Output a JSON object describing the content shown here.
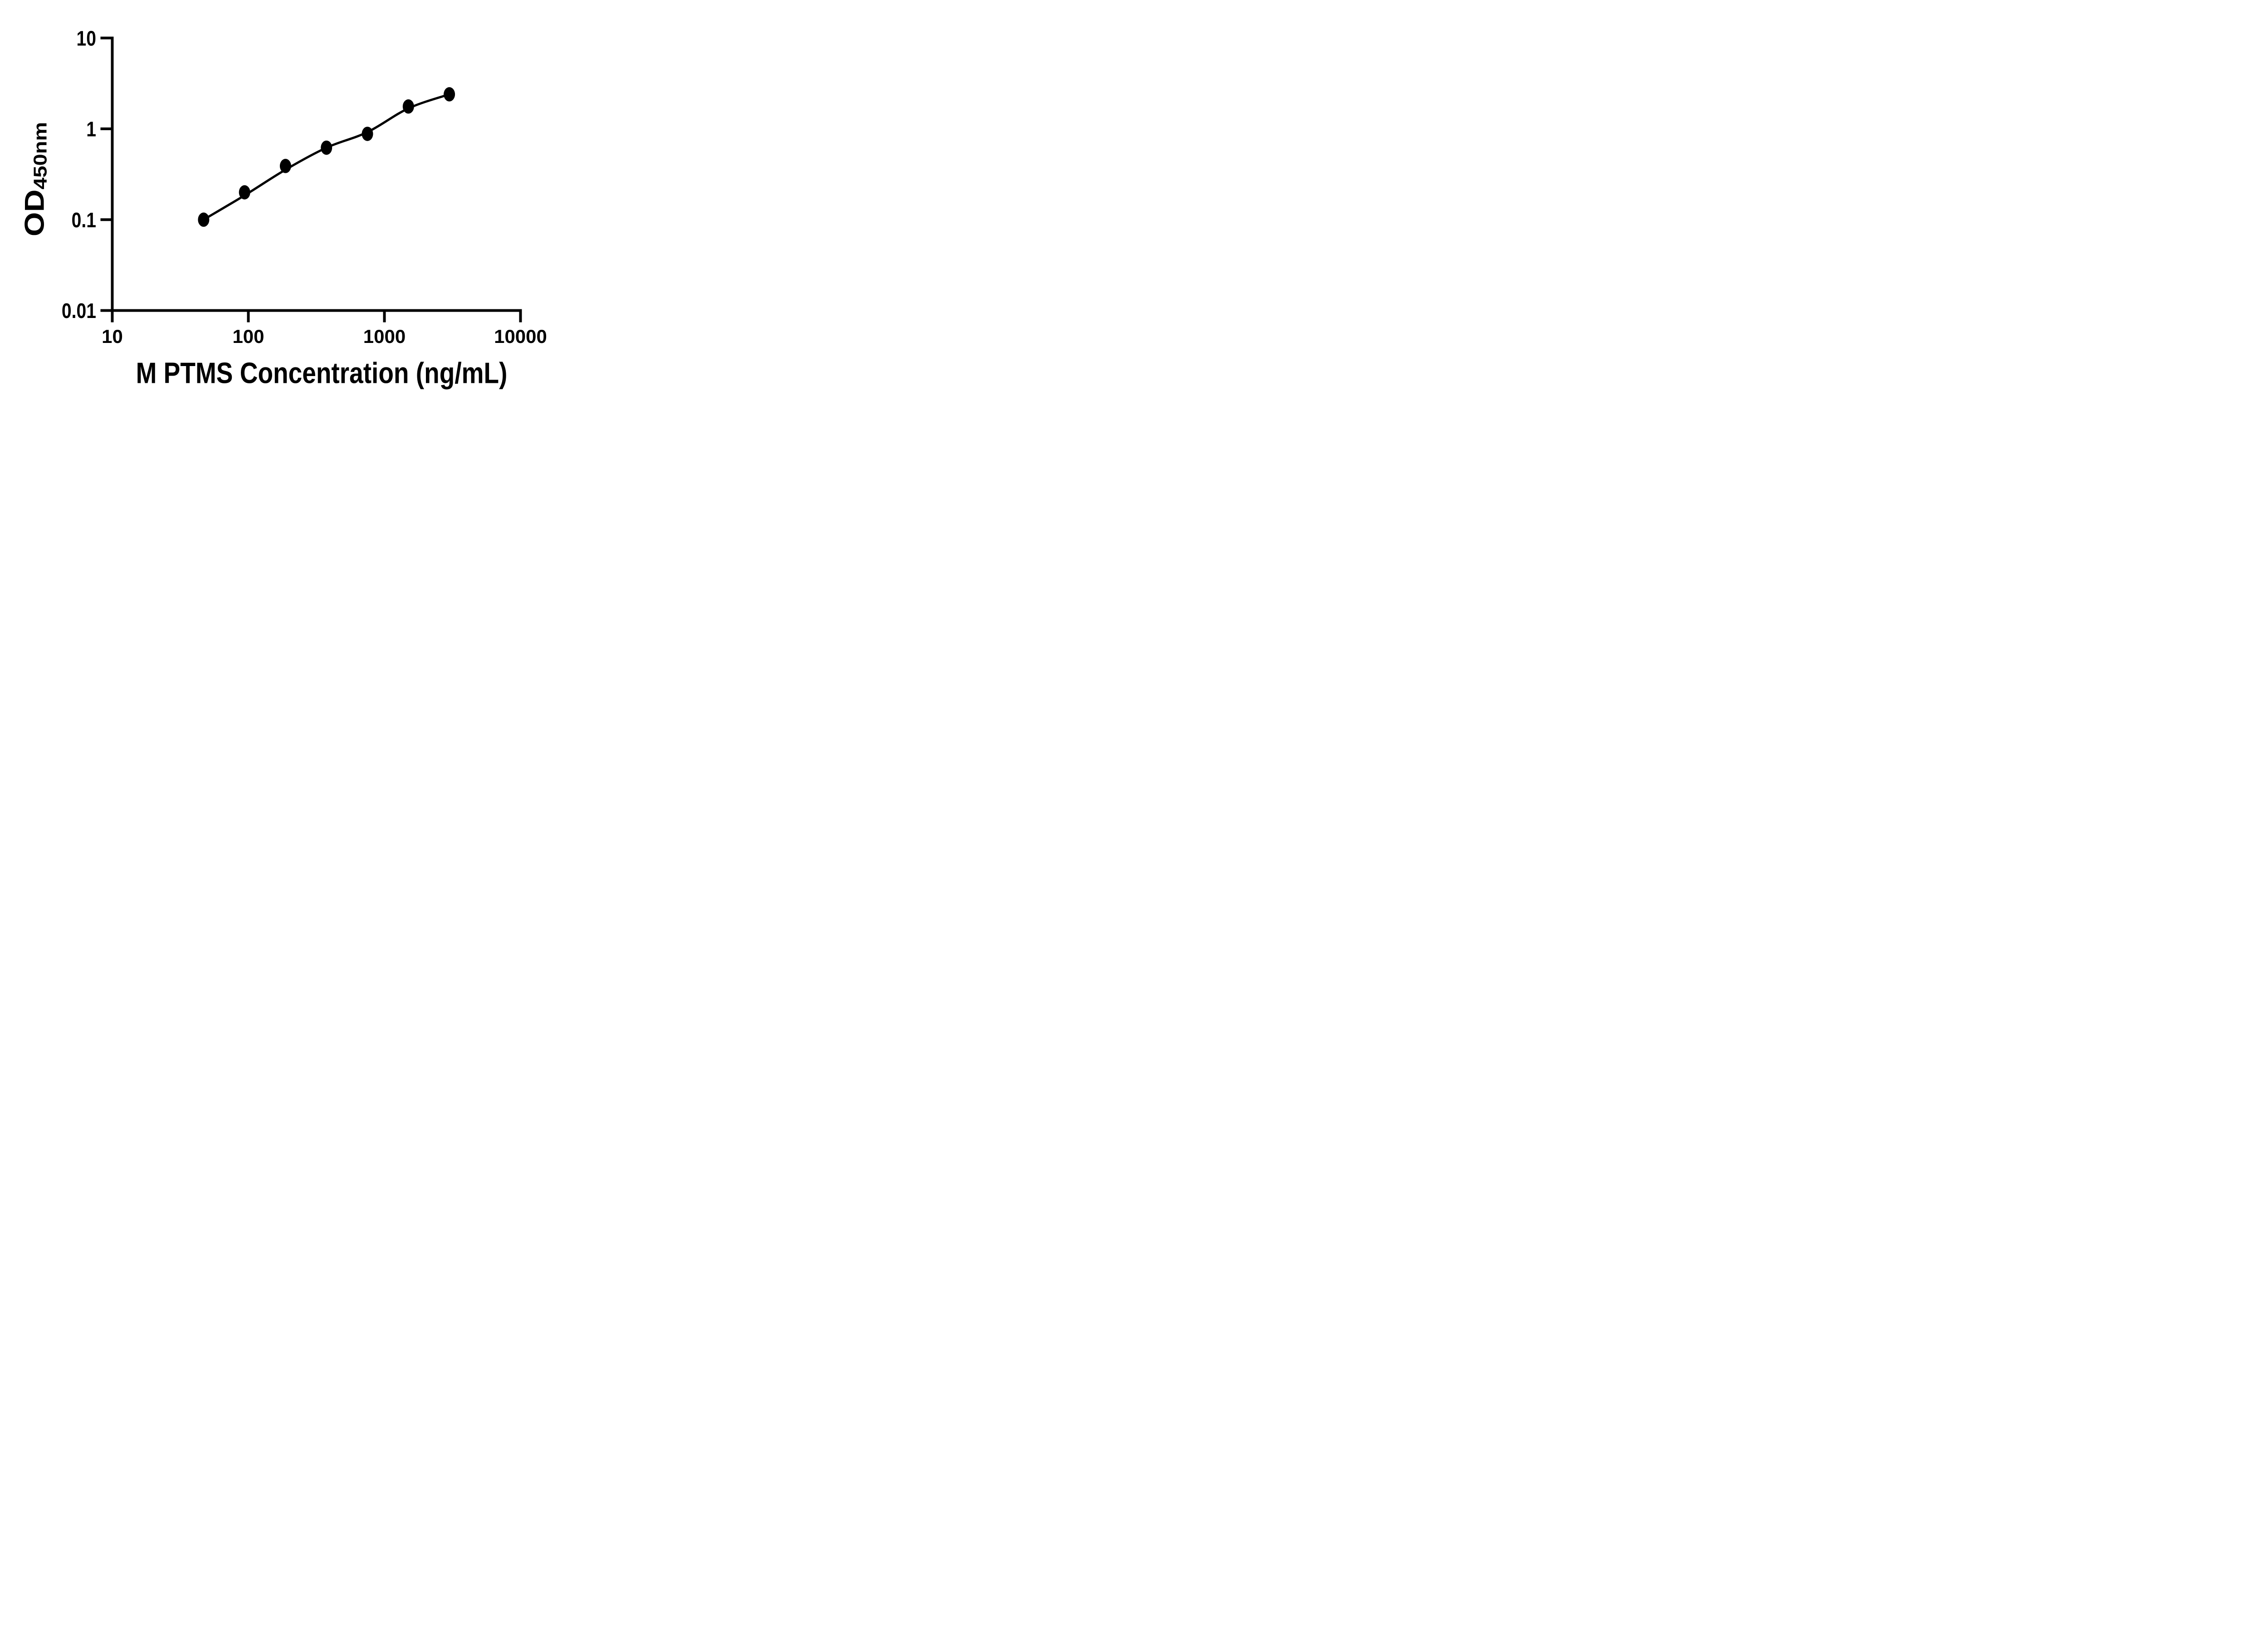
{
  "chart_data": {
    "type": "scatter",
    "title": "",
    "xlabel": "M PTMS Concentration (ng/mL)",
    "ylabel": "OD450nm",
    "ylabel_main": "OD",
    "ylabel_sub": "450nm",
    "x_scale": "log",
    "y_scale": "log",
    "xlim": [
      10,
      10000
    ],
    "ylim": [
      0.01,
      10
    ],
    "grid": false,
    "legend": null,
    "ink_color": "#000000",
    "background_color": "#ffffff",
    "x_ticks": [
      10,
      100,
      1000,
      10000
    ],
    "x_tick_labels": [
      "10",
      "100",
      "1000",
      "10000"
    ],
    "y_ticks": [
      10,
      1,
      0.1,
      0.01
    ],
    "y_tick_labels": [
      "10",
      "1",
      "0.1",
      "0.01"
    ],
    "series": [
      {
        "name": "standard-points",
        "kind": "scatter",
        "marker": "filled-ellipse",
        "color": "#000000",
        "x": [
          46.9,
          93.8,
          187.5,
          375,
          750,
          1500,
          3000
        ],
        "y": [
          0.1,
          0.2,
          0.39,
          0.62,
          0.88,
          1.76,
          2.4
        ]
      },
      {
        "name": "fit-curve",
        "kind": "line",
        "color": "#000000",
        "x": [
          46.9,
          93.8,
          187.5,
          375,
          750,
          1500,
          3000
        ],
        "y": [
          0.1,
          0.185,
          0.355,
          0.62,
          0.92,
          1.68,
          2.4
        ]
      }
    ]
  }
}
